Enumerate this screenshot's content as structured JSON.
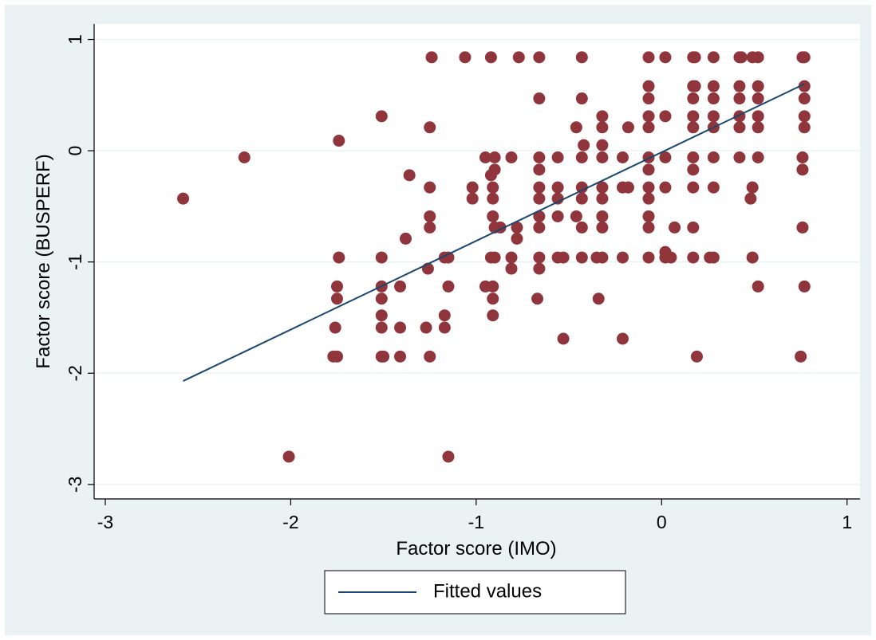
{
  "chart_data": {
    "type": "scatter",
    "xlabel": "Factor score (IMO)",
    "ylabel": "Factor score (BUSPERF)",
    "xlim": [
      -3.06,
      1.07
    ],
    "ylim": [
      -3.13,
      1.14
    ],
    "xticks": [
      -3,
      -2,
      -1,
      0,
      1
    ],
    "yticks": [
      -3,
      -2,
      -1,
      0,
      1
    ],
    "grid": true,
    "legend": "bottom",
    "series": [
      {
        "type": "scatter",
        "color": "#90353b",
        "x": [
          -1.24,
          -1.06,
          -0.92,
          -0.77,
          -0.66,
          -0.43,
          -0.07,
          0.02,
          0.17,
          0.18,
          0.28,
          0.42,
          0.43,
          0.49,
          0.52,
          0.76,
          0.77,
          -0.07,
          0.17,
          0.18,
          0.28,
          0.42,
          0.52,
          0.77,
          -0.66,
          -0.43,
          -0.07,
          0.17,
          0.28,
          0.42,
          0.52,
          0.77,
          -1.51,
          -0.32,
          -0.07,
          0.02,
          0.17,
          0.28,
          0.42,
          0.52,
          0.77,
          -1.25,
          -0.46,
          -0.32,
          -0.18,
          -0.07,
          0.17,
          0.28,
          0.42,
          0.52,
          0.77,
          -1.74,
          -0.42,
          -0.32,
          -2.25,
          -0.95,
          -0.9,
          -0.81,
          -0.66,
          -0.56,
          -0.43,
          -0.32,
          -0.21,
          -0.07,
          0.02,
          0.17,
          0.28,
          0.42,
          0.52,
          0.76,
          -0.9,
          -0.66,
          -0.07,
          0.17,
          0.76,
          -1.36,
          -0.92,
          -1.25,
          -1.02,
          -0.91,
          -0.66,
          -0.56,
          -0.43,
          -0.32,
          -0.21,
          -0.18,
          -0.07,
          0.02,
          0.17,
          0.28,
          0.49,
          -2.58,
          -1.02,
          -0.91,
          -0.66,
          -0.56,
          -0.43,
          -0.32,
          -0.07,
          0.48,
          -1.25,
          -0.91,
          -0.66,
          -0.56,
          -0.46,
          -0.32,
          -0.07,
          -1.25,
          -0.9,
          -0.87,
          -0.78,
          -0.66,
          -0.43,
          -0.32,
          -0.07,
          0.07,
          0.17,
          0.76,
          -1.38,
          -0.78,
          0.02,
          -1.74,
          -1.51,
          -1.17,
          -1.15,
          -0.92,
          -0.9,
          -0.81,
          -0.66,
          -0.56,
          -0.53,
          -0.43,
          -0.35,
          -0.32,
          -0.21,
          -0.07,
          0.02,
          0.05,
          0.17,
          0.26,
          0.28,
          0.49,
          -1.26,
          -0.81,
          -0.66,
          -1.75,
          -1.51,
          -1.41,
          -1.15,
          -0.95,
          -0.91,
          0.52,
          0.77,
          -1.75,
          -1.51,
          -0.91,
          -0.67,
          -0.34,
          -1.51,
          -1.17,
          -0.91,
          -1.76,
          -1.51,
          -1.41,
          -1.27,
          -1.17,
          -0.53,
          -0.21,
          -1.77,
          -1.75,
          -1.51,
          -1.5,
          -1.41,
          -1.25,
          0.19,
          0.75,
          -2.01,
          -1.15
        ],
        "values": [
          0.84,
          0.84,
          0.84,
          0.84,
          0.84,
          0.84,
          0.84,
          0.84,
          0.84,
          0.84,
          0.84,
          0.84,
          0.84,
          0.84,
          0.84,
          0.84,
          0.84,
          0.58,
          0.58,
          0.58,
          0.58,
          0.58,
          0.58,
          0.58,
          0.47,
          0.47,
          0.47,
          0.47,
          0.47,
          0.47,
          0.47,
          0.47,
          0.31,
          0.31,
          0.31,
          0.31,
          0.31,
          0.31,
          0.31,
          0.31,
          0.31,
          0.21,
          0.21,
          0.21,
          0.21,
          0.21,
          0.21,
          0.21,
          0.21,
          0.21,
          0.21,
          0.09,
          0.05,
          0.05,
          -0.06,
          -0.06,
          -0.06,
          -0.06,
          -0.06,
          -0.06,
          -0.06,
          -0.06,
          -0.06,
          -0.06,
          -0.06,
          -0.06,
          -0.06,
          -0.06,
          -0.06,
          -0.06,
          -0.17,
          -0.17,
          -0.17,
          -0.17,
          -0.17,
          -0.22,
          -0.22,
          -0.33,
          -0.33,
          -0.33,
          -0.33,
          -0.33,
          -0.33,
          -0.33,
          -0.33,
          -0.33,
          -0.33,
          -0.33,
          -0.33,
          -0.33,
          -0.33,
          -0.43,
          -0.43,
          -0.43,
          -0.43,
          -0.43,
          -0.43,
          -0.43,
          -0.43,
          -0.43,
          -0.59,
          -0.59,
          -0.59,
          -0.59,
          -0.59,
          -0.59,
          -0.59,
          -0.69,
          -0.69,
          -0.69,
          -0.69,
          -0.69,
          -0.69,
          -0.69,
          -0.69,
          -0.69,
          -0.69,
          -0.69,
          -0.79,
          -0.79,
          -0.91,
          -0.96,
          -0.96,
          -0.96,
          -0.96,
          -0.96,
          -0.96,
          -0.96,
          -0.96,
          -0.96,
          -0.96,
          -0.96,
          -0.96,
          -0.96,
          -0.96,
          -0.96,
          -0.96,
          -0.96,
          -0.96,
          -0.96,
          -0.96,
          -0.96,
          -1.06,
          -1.06,
          -1.06,
          -1.22,
          -1.22,
          -1.22,
          -1.22,
          -1.22,
          -1.22,
          -1.22,
          -1.22,
          -1.33,
          -1.33,
          -1.33,
          -1.33,
          -1.33,
          -1.48,
          -1.48,
          -1.48,
          -1.59,
          -1.59,
          -1.59,
          -1.59,
          -1.59,
          -1.69,
          -1.69,
          -1.85,
          -1.85,
          -1.85,
          -1.85,
          -1.85,
          -1.85,
          -1.85,
          -1.85,
          -2.75,
          -2.75
        ]
      },
      {
        "type": "line",
        "name": "Fitted values",
        "color": "#1a476f",
        "x": [
          -2.58,
          0.77
        ],
        "values": [
          -2.07,
          0.6
        ]
      }
    ]
  }
}
